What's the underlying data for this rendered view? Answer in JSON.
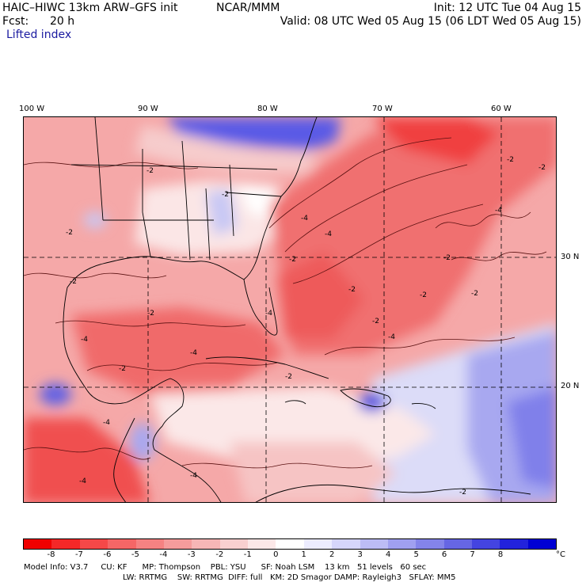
{
  "header": {
    "model_title": "HAIC–HIWC 13km ARW–GFS init",
    "org": "NCAR/MMM",
    "init_time": "Init: 12 UTC Tue 04 Aug 15",
    "forecast_label": "Fcst:",
    "forecast_hours": "20 h",
    "valid_time": "Valid: 08 UTC Wed 05 Aug 15 (06 LDT Wed 05 Aug 15)",
    "field_name": "Lifted index"
  },
  "map": {
    "longitude_labels": [
      "100 W",
      "90 W",
      "80 W",
      "70 W",
      "60 W"
    ],
    "latitude_labels": [
      "30 N",
      "20 N"
    ],
    "contour_labels": [
      "-2",
      "-2",
      "-4",
      "-2",
      "-2",
      "-4",
      "-4",
      "-4",
      "-2",
      "-4",
      "-2",
      "-2",
      "-4",
      "-2",
      "-2",
      "-2",
      "-2",
      "-2",
      "-2",
      "-4",
      "-4",
      "-4",
      "-2",
      "-2",
      "-4",
      "-2"
    ]
  },
  "colorbar": {
    "tick_labels": [
      "-8",
      "-7",
      "-6",
      "-5",
      "-4",
      "-3",
      "-2",
      "-1",
      "0",
      "1",
      "2",
      "3",
      "4",
      "5",
      "6",
      "7",
      "8"
    ],
    "unit": "°C",
    "colors": [
      "#f00000",
      "#f42828",
      "#f54848",
      "#f56666",
      "#f58282",
      "#f59c9c",
      "#f7b6b6",
      "#f9d0d0",
      "#fce8e8",
      "#ffffff",
      "#ececff",
      "#d6d6fb",
      "#bcbcf5",
      "#a0a0f0",
      "#8484ea",
      "#6666e4",
      "#4444e0",
      "#2222dc",
      "#0000d4"
    ]
  },
  "model_info": {
    "line1": "Model Info: V3.7     CU: KF      MP: Thompson    PBL: YSU      SF: Noah LSM    13 km   51 levels   60 sec",
    "line2": "LW: RRTMG    SW: RRTMG  DIFF: full   KM: 2D Smagor DAMP: Rayleigh3   SFLAY: MM5"
  }
}
